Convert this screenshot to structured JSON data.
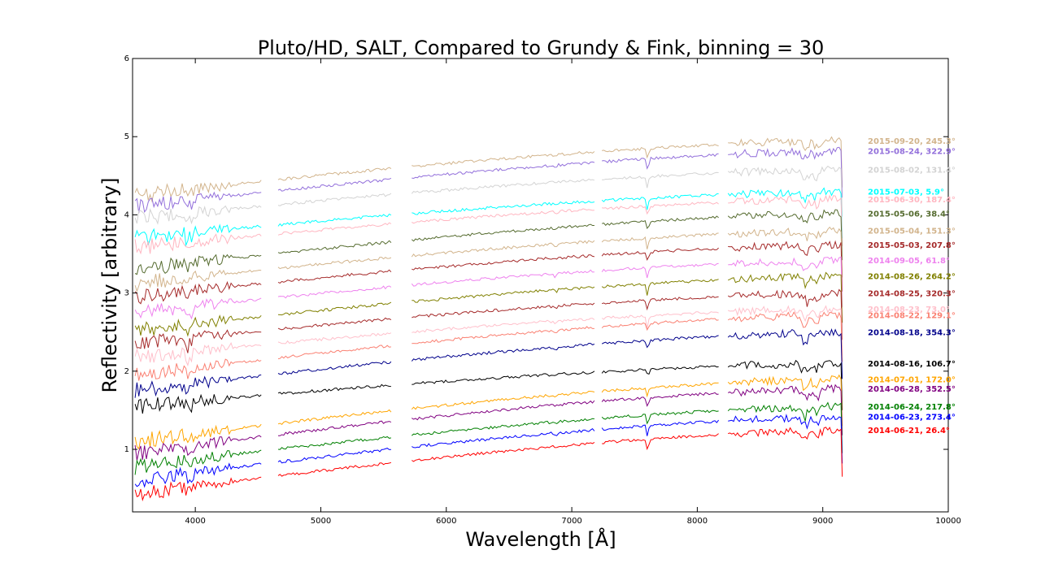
{
  "chart_data": {
    "type": "line",
    "title": "Pluto/HD, SALT, Compared to Grundy & Fink, binning = 30",
    "xlabel": "Wavelength [Å]",
    "ylabel": "Reflectivity [arbitrary]",
    "xlim": [
      3500,
      10000
    ],
    "ylim": [
      0.2,
      6.0
    ],
    "xticks": [
      4000,
      5000,
      6000,
      7000,
      8000,
      9000,
      10000
    ],
    "yticks": [
      1,
      2,
      3,
      4,
      5,
      6
    ],
    "grid": false,
    "legend_placement": "right",
    "series": [
      {
        "name": "2015-09-20, 245.3°",
        "color": "#d2b48c",
        "start": 4.25,
        "end": 4.95
      },
      {
        "name": "2015-08-24, 322.9°",
        "color": "#9370db",
        "start": 4.1,
        "end": 4.82
      },
      {
        "name": "2015-08-02, 131.4°",
        "color": "#d3d3d3",
        "start": 3.95,
        "end": 4.58
      },
      {
        "name": "2015-07-03, 5.9°",
        "color": "#00ffff",
        "start": 3.7,
        "end": 4.3
      },
      {
        "name": "2015-06-30, 187.4°",
        "color": "#ffb6c1",
        "start": 3.58,
        "end": 4.2
      },
      {
        "name": "2015-05-06, 38.4°",
        "color": "#556b2f",
        "start": 3.3,
        "end": 4.02
      },
      {
        "name": "2015-05-04, 151.3°",
        "color": "#d2b48c",
        "start": 3.12,
        "end": 3.8
      },
      {
        "name": "2015-05-03, 207.8°",
        "color": "#a52a2a",
        "start": 2.95,
        "end": 3.62
      },
      {
        "name": "2014-09-05, 61.8°",
        "color": "#ee82ee",
        "start": 2.75,
        "end": 3.42
      },
      {
        "name": "2014-08-26, 264.2°",
        "color": "#808000",
        "start": 2.52,
        "end": 3.22
      },
      {
        "name": "2014-08-25, 320.3°",
        "color": "#a52a2a",
        "start": 2.35,
        "end": 3.0
      },
      {
        "name": "2014-08-23, 73.0°",
        "color": "#ffc0cb",
        "start": 2.18,
        "end": 2.8
      },
      {
        "name": "2014-08-22, 129.1°",
        "color": "#fa8072",
        "start": 1.95,
        "end": 2.72
      },
      {
        "name": "2014-08-18, 354.3°",
        "color": "#00008b",
        "start": 1.75,
        "end": 2.5
      },
      {
        "name": "2014-08-16, 106.7°",
        "color": "#000000",
        "start": 1.55,
        "end": 2.1
      },
      {
        "name": "2014-07-01, 172.0°",
        "color": "#ffa500",
        "start": 1.1,
        "end": 1.9
      },
      {
        "name": "2014-06-28, 352.5°",
        "color": "#800080",
        "start": 0.95,
        "end": 1.78
      },
      {
        "name": "2014-06-24, 217.8°",
        "color": "#008000",
        "start": 0.78,
        "end": 1.55
      },
      {
        "name": "2014-06-23, 273.4°",
        "color": "#0000ff",
        "start": 0.6,
        "end": 1.42
      },
      {
        "name": "2014-06-21, 26.4°",
        "color": "#ff0000",
        "start": 0.42,
        "end": 1.25
      }
    ]
  }
}
